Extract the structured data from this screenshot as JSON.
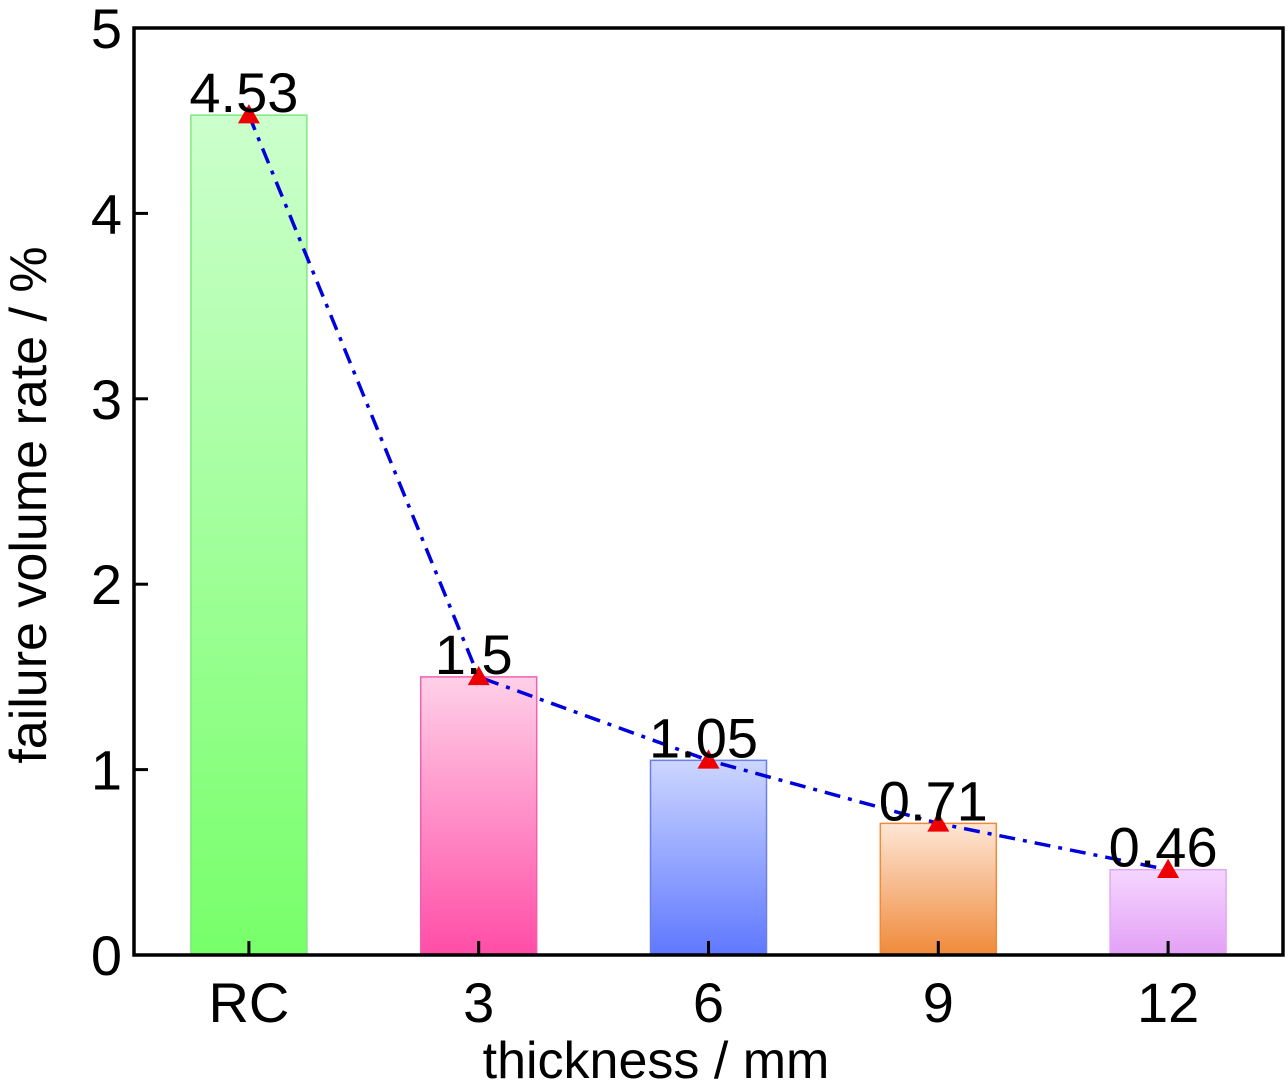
{
  "chart_data": {
    "type": "bar",
    "categories": [
      "RC",
      "3",
      "6",
      "9",
      "12"
    ],
    "values": [
      4.53,
      1.5,
      1.05,
      0.71,
      0.46
    ],
    "data_labels": [
      "4.53",
      "1.5",
      "1.05",
      "0.71",
      "0.46"
    ],
    "xlabel": "thickness / mm",
    "ylabel": "failure volume rate / %",
    "ylim": [
      0,
      5
    ],
    "yticks": [
      0,
      1,
      2,
      3,
      4,
      5
    ],
    "grid": false,
    "legend": "none",
    "bar_gradients": [
      {
        "top": "#ccffcc",
        "bottom": "#77ff6a",
        "stroke": "#7fe87f"
      },
      {
        "top": "#ffd0e8",
        "bottom": "#ff4da6",
        "stroke": "#f060b0"
      },
      {
        "top": "#ccd6ff",
        "bottom": "#5f78ff",
        "stroke": "#6a7fe8"
      },
      {
        "top": "#fde6d6",
        "bottom": "#f08a3a",
        "stroke": "#f08a3a"
      },
      {
        "top": "#f5d6ff",
        "bottom": "#e3a0f5",
        "stroke": "#e3a8f5"
      }
    ],
    "overlay_line": {
      "color": "#0000dd",
      "style": "dash-dot",
      "marker": "triangle",
      "marker_color": "#ee0000"
    }
  }
}
